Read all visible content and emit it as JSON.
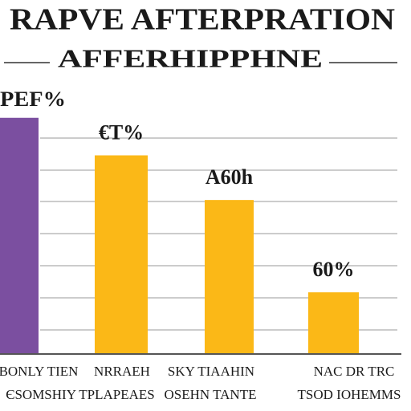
{
  "chart_data": {
    "type": "bar",
    "title": "RAPVE AFTERPRATION",
    "subtitle": "AFFERHIPPHNE",
    "y_label": "PEF%",
    "values": [
      232,
      195,
      151,
      60
    ],
    "value_labels": [
      null,
      "€T%",
      "A60h",
      "60%"
    ],
    "colors": [
      "#7b4fa0",
      "#fbb817",
      "#fbb817",
      "#fbb817"
    ],
    "ylim": [
      0,
      250
    ],
    "grid": true,
    "footer_rows": [
      [
        "BONLY TIEN",
        "NRRAEH",
        "SKY TIAAHIN",
        "NAC DR TRC"
      ],
      [
        "ЄSOMSHIY TPLAPEAES",
        "OSEHN TANTE",
        "TSOD IOHEMMS"
      ]
    ]
  }
}
